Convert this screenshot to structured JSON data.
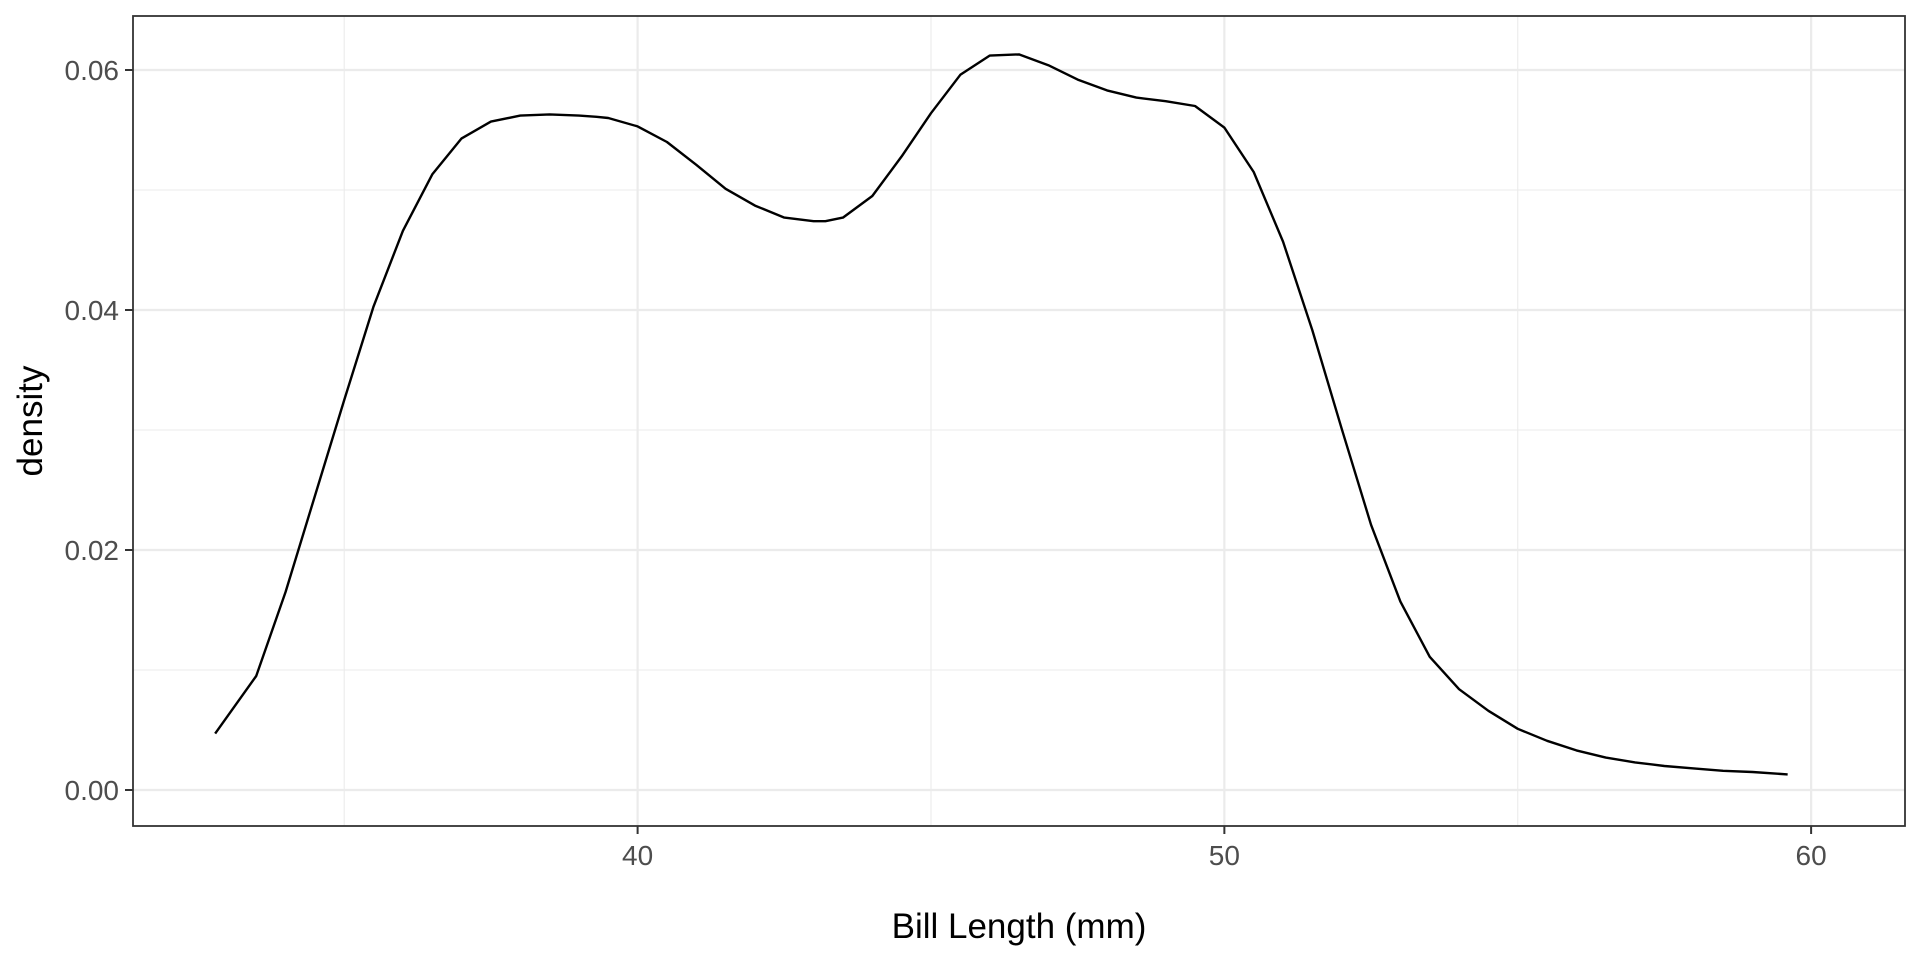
{
  "chart_data": {
    "type": "line",
    "title": "",
    "xlabel": "Bill Length (mm)",
    "ylabel": "density",
    "xlim": [
      31.4,
      61.6
    ],
    "ylim": [
      -0.003,
      0.0645
    ],
    "x_ticks": [
      {
        "value": 40,
        "label": "40"
      },
      {
        "value": 50,
        "label": "50"
      },
      {
        "value": 60,
        "label": "60"
      }
    ],
    "x_minor_ticks": [
      35,
      45,
      55
    ],
    "y_ticks": [
      {
        "value": 0.0,
        "label": "0.00"
      },
      {
        "value": 0.02,
        "label": "0.02"
      },
      {
        "value": 0.04,
        "label": "0.04"
      },
      {
        "value": 0.06,
        "label": "0.06"
      }
    ],
    "y_minor_ticks": [
      0.01,
      0.03,
      0.05
    ],
    "grid": true,
    "legend": "none",
    "line_color": "#000000",
    "series": [
      {
        "x": [
          32.8,
          33.5,
          34.0,
          34.5,
          35.0,
          35.5,
          36.0,
          36.5,
          37.0,
          37.5,
          38.0,
          38.5,
          39.0,
          39.3,
          39.5,
          40.0,
          40.5,
          41.0,
          41.5,
          42.0,
          42.5,
          43.0,
          43.2,
          43.5,
          44.0,
          44.5,
          45.0,
          45.5,
          46.0,
          46.5,
          47.0,
          47.5,
          48.0,
          48.5,
          49.0,
          49.5,
          50.0,
          50.5,
          51.0,
          51.5,
          52.0,
          52.5,
          53.0,
          53.5,
          54.0,
          54.5,
          55.0,
          55.5,
          56.0,
          56.5,
          57.0,
          57.5,
          58.0,
          58.5,
          59.0,
          59.6
        ],
        "y": [
          0.0047,
          0.0095,
          0.0165,
          0.0245,
          0.0325,
          0.0403,
          0.0466,
          0.0513,
          0.0543,
          0.0557,
          0.0562,
          0.0563,
          0.0562,
          0.0561,
          0.056,
          0.0553,
          0.054,
          0.0521,
          0.0501,
          0.0487,
          0.0477,
          0.0474,
          0.0474,
          0.0477,
          0.0495,
          0.0528,
          0.0564,
          0.0596,
          0.0612,
          0.0613,
          0.0604,
          0.0592,
          0.0583,
          0.0577,
          0.0574,
          0.057,
          0.0552,
          0.0515,
          0.0457,
          0.0383,
          0.0301,
          0.0221,
          0.0157,
          0.0111,
          0.0084,
          0.0066,
          0.0051,
          0.0041,
          0.0033,
          0.0027,
          0.0023,
          0.002,
          0.0018,
          0.0016,
          0.0015,
          0.0013
        ]
      }
    ]
  }
}
